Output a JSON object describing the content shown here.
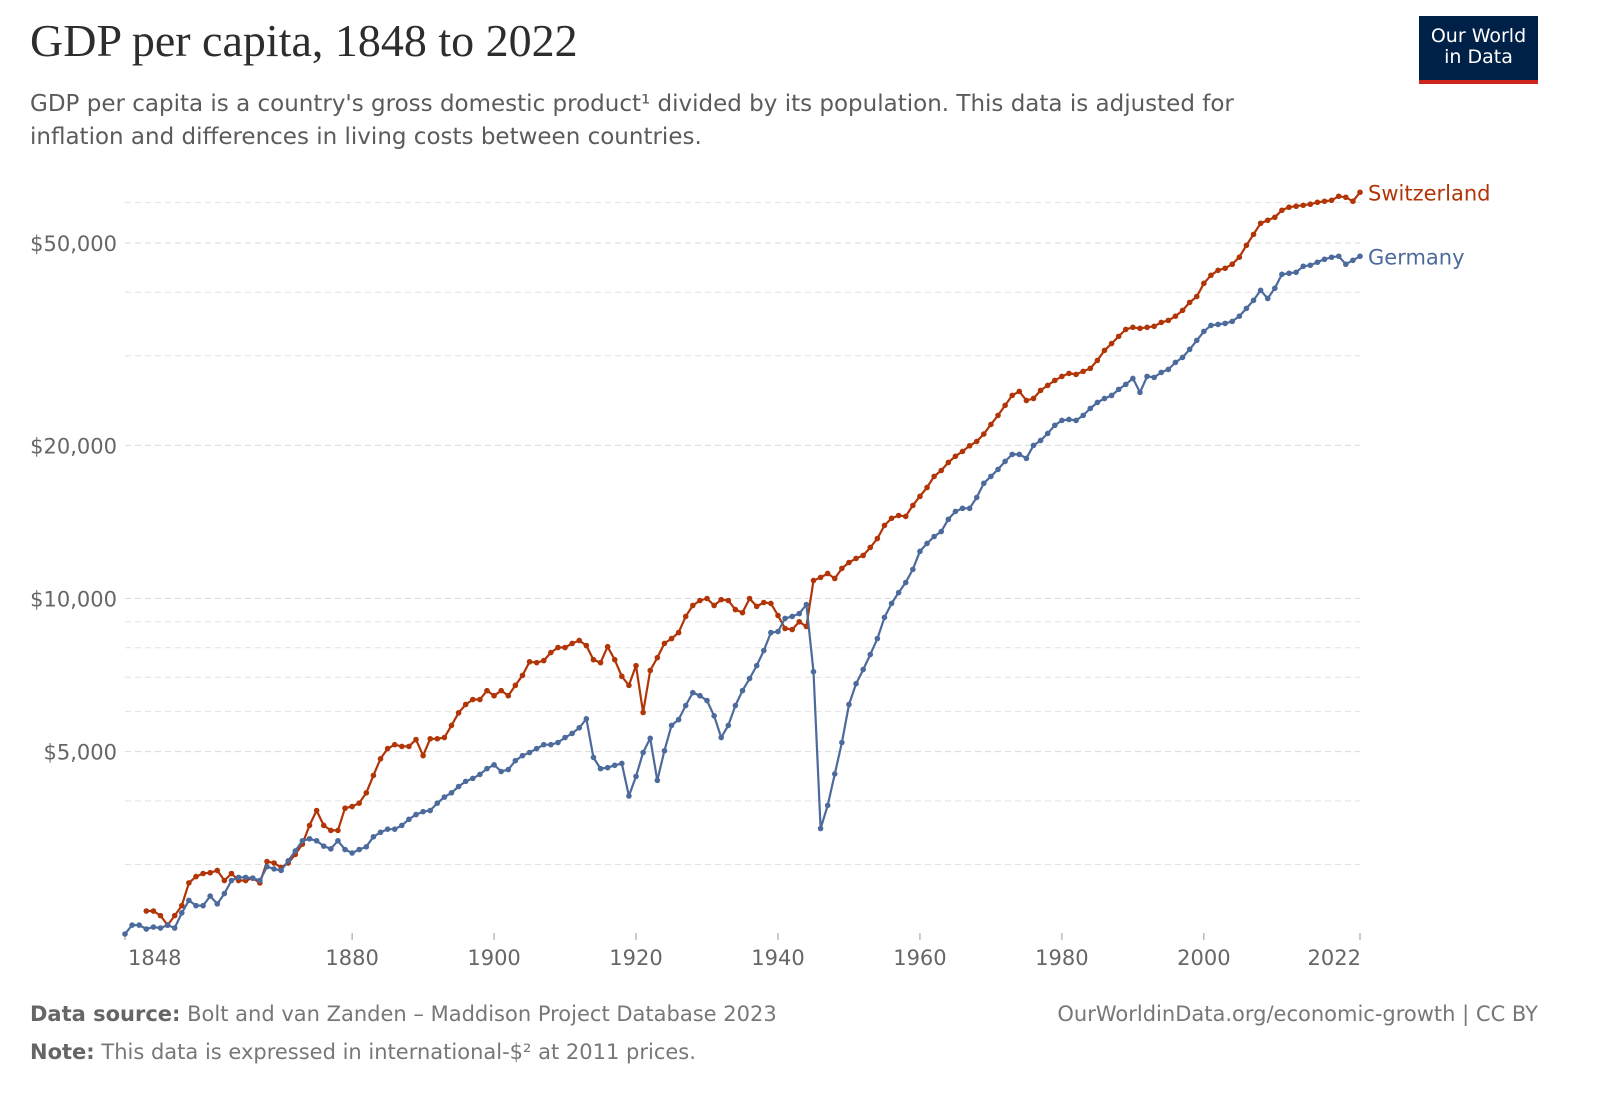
{
  "chart_data": {
    "type": "line",
    "title": "GDP per capita, 1848 to 2022",
    "subtitle": "GDP per capita is a country's gross domestic product¹ divided by its population. This data is adjusted for inflation and differences in living costs between countries.",
    "logo": [
      "Our World",
      "in Data"
    ],
    "source_label": "Data source:",
    "source": "Bolt and van Zanden – Maddison Project Database 2023",
    "note_label": "Note:",
    "note": "This data is expressed in international-$² at 2011 prices.",
    "credit": "OurWorldinData.org/economic-growth | CC BY",
    "yscale": "log",
    "grid": true,
    "xlim": [
      1848,
      2022
    ],
    "xticks": [
      1848,
      1880,
      1900,
      1920,
      1940,
      1960,
      1980,
      2000,
      2022
    ],
    "ylim": [
      2200,
      65000
    ],
    "yticks": [
      {
        "value": 5000,
        "label": "$5,000"
      },
      {
        "value": 10000,
        "label": "$10,000"
      },
      {
        "value": 20000,
        "label": "$20,000"
      },
      {
        "value": 50000,
        "label": "$50,000"
      }
    ],
    "y_minor_gridlines": [
      3000,
      4000,
      6000,
      7000,
      8000,
      9000,
      30000,
      40000,
      60000
    ],
    "x": [
      1848,
      1849,
      1850,
      1851,
      1852,
      1853,
      1854,
      1855,
      1856,
      1857,
      1858,
      1859,
      1860,
      1861,
      1862,
      1863,
      1864,
      1865,
      1866,
      1867,
      1868,
      1869,
      1870,
      1871,
      1872,
      1873,
      1874,
      1875,
      1876,
      1877,
      1878,
      1879,
      1880,
      1881,
      1882,
      1883,
      1884,
      1885,
      1886,
      1887,
      1888,
      1889,
      1890,
      1891,
      1892,
      1893,
      1894,
      1895,
      1896,
      1897,
      1898,
      1899,
      1900,
      1901,
      1902,
      1903,
      1904,
      1905,
      1906,
      1907,
      1908,
      1909,
      1910,
      1911,
      1912,
      1913,
      1914,
      1915,
      1916,
      1917,
      1918,
      1919,
      1920,
      1921,
      1922,
      1923,
      1924,
      1925,
      1926,
      1927,
      1928,
      1929,
      1930,
      1931,
      1932,
      1933,
      1934,
      1935,
      1936,
      1937,
      1938,
      1939,
      1940,
      1941,
      1942,
      1943,
      1944,
      1945,
      1946,
      1947,
      1948,
      1949,
      1950,
      1951,
      1952,
      1953,
      1954,
      1955,
      1956,
      1957,
      1958,
      1959,
      1960,
      1961,
      1962,
      1963,
      1964,
      1965,
      1966,
      1967,
      1968,
      1969,
      1970,
      1971,
      1972,
      1973,
      1974,
      1975,
      1976,
      1977,
      1978,
      1979,
      1980,
      1981,
      1982,
      1983,
      1984,
      1985,
      1986,
      1987,
      1988,
      1989,
      1990,
      1991,
      1992,
      1993,
      1994,
      1995,
      1996,
      1997,
      1998,
      1999,
      2000,
      2001,
      2002,
      2003,
      2004,
      2005,
      2006,
      2007,
      2008,
      2009,
      2010,
      2011,
      2012,
      2013,
      2014,
      2015,
      2016,
      2017,
      2018,
      2019,
      2020,
      2021,
      2022
    ],
    "series": [
      {
        "name": "Switzerland",
        "color": "#b13507",
        "values": [
          null,
          null,
          null,
          2430,
          2430,
          2380,
          2280,
          2380,
          2490,
          2760,
          2840,
          2880,
          2890,
          2920,
          2790,
          2880,
          2790,
          2790,
          2820,
          2760,
          3040,
          3020,
          2960,
          3020,
          3140,
          3290,
          3580,
          3830,
          3580,
          3500,
          3500,
          3870,
          3900,
          3960,
          4150,
          4490,
          4840,
          5070,
          5160,
          5120,
          5120,
          5280,
          4910,
          5300,
          5300,
          5330,
          5630,
          5960,
          6190,
          6330,
          6330,
          6590,
          6440,
          6590,
          6440,
          6750,
          7060,
          7510,
          7480,
          7550,
          7830,
          8010,
          8010,
          8160,
          8270,
          8080,
          7580,
          7480,
          8040,
          7580,
          7030,
          6750,
          7380,
          5970,
          7220,
          7650,
          8160,
          8340,
          8570,
          9220,
          9690,
          9910,
          10000,
          9690,
          9950,
          9910,
          9510,
          9380,
          10000,
          9650,
          9820,
          9780,
          9260,
          8730,
          8690,
          9000,
          8810,
          10850,
          11000,
          11200,
          10950,
          11460,
          11770,
          11990,
          12150,
          12600,
          13120,
          13920,
          14380,
          14560,
          14500,
          15240,
          15880,
          16530,
          17380,
          17850,
          18510,
          19040,
          19460,
          19960,
          20360,
          21050,
          21990,
          22910,
          23970,
          25080,
          25540,
          24510,
          24730,
          25650,
          26240,
          26840,
          27330,
          27700,
          27580,
          27960,
          28340,
          29380,
          30740,
          31710,
          32760,
          33810,
          34130,
          33970,
          34130,
          34290,
          34900,
          35220,
          35890,
          36850,
          38210,
          39240,
          41650,
          43200,
          44180,
          44590,
          45410,
          46880,
          49480,
          51980,
          54660,
          55410,
          56170,
          57980,
          58780,
          59050,
          59310,
          59580,
          60110,
          60390,
          60660,
          61770,
          61490,
          60390,
          62900
        ]
      },
      {
        "name": "Germany",
        "color": "#4c6a9c",
        "values": [
          2190,
          2280,
          2280,
          2240,
          2260,
          2250,
          2280,
          2250,
          2410,
          2550,
          2490,
          2490,
          2600,
          2510,
          2630,
          2790,
          2830,
          2830,
          2820,
          2790,
          2970,
          2940,
          2920,
          3050,
          3190,
          3340,
          3370,
          3340,
          3260,
          3220,
          3340,
          3210,
          3160,
          3210,
          3250,
          3400,
          3470,
          3520,
          3520,
          3580,
          3680,
          3760,
          3810,
          3830,
          3960,
          4070,
          4150,
          4270,
          4370,
          4430,
          4510,
          4630,
          4710,
          4570,
          4610,
          4800,
          4910,
          4980,
          5070,
          5160,
          5160,
          5210,
          5330,
          5430,
          5570,
          5800,
          4870,
          4630,
          4650,
          4700,
          4740,
          4090,
          4470,
          4980,
          5310,
          4390,
          5020,
          5630,
          5780,
          6160,
          6530,
          6440,
          6300,
          5880,
          5330,
          5630,
          6160,
          6590,
          6960,
          7380,
          7900,
          8570,
          8610,
          9140,
          9220,
          9340,
          9730,
          7180,
          3530,
          3920,
          4520,
          5210,
          6190,
          6800,
          7250,
          7760,
          8340,
          9180,
          9780,
          10270,
          10750,
          11410,
          12380,
          12830,
          13240,
          13540,
          14310,
          14830,
          15040,
          15040,
          15800,
          16850,
          17380,
          17940,
          18600,
          19200,
          19200,
          18860,
          20000,
          20450,
          21110,
          21900,
          22390,
          22490,
          22390,
          22910,
          23640,
          24290,
          24730,
          25070,
          25770,
          26360,
          27080,
          25420,
          27330,
          27210,
          27830,
          28210,
          29120,
          29780,
          30890,
          32170,
          33510,
          34420,
          34580,
          34740,
          35060,
          35890,
          37180,
          38560,
          40350,
          38890,
          40730,
          43390,
          43590,
          43780,
          44990,
          45200,
          45820,
          46440,
          46870,
          47080,
          45410,
          46220,
          47080
        ]
      }
    ]
  }
}
